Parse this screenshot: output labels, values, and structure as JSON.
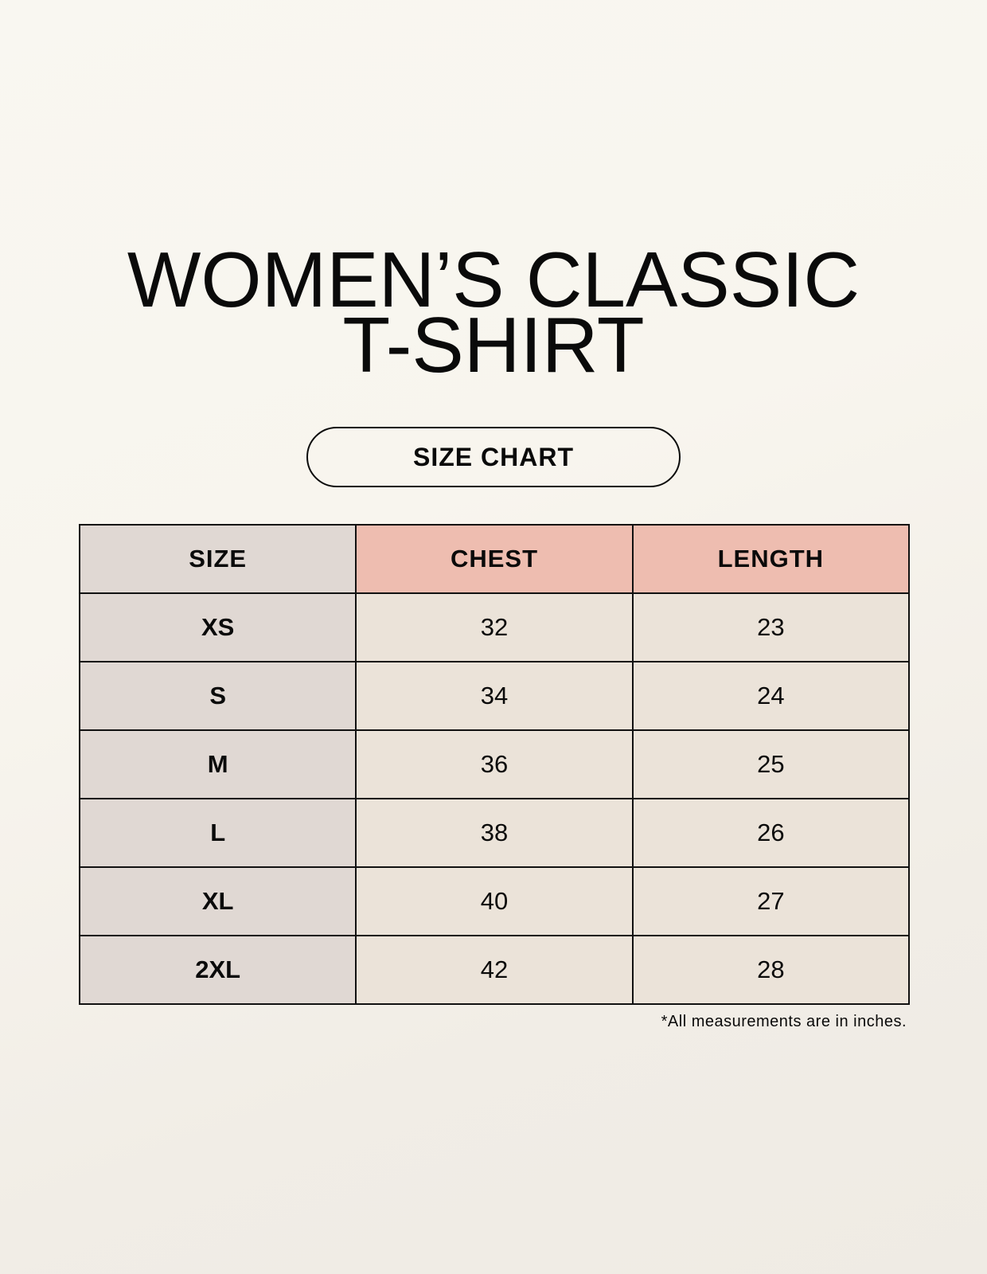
{
  "title_line1": "WOMEN’S CLASSIC",
  "title_line2": "T-SHIRT",
  "subtitle": "SIZE CHART",
  "table": {
    "headers": [
      "SIZE",
      "CHEST",
      "LENGTH"
    ],
    "rows": [
      [
        "XS",
        "32",
        "23"
      ],
      [
        "S",
        "34",
        "24"
      ],
      [
        "M",
        "36",
        "25"
      ],
      [
        "L",
        "38",
        "26"
      ],
      [
        "XL",
        "40",
        "27"
      ],
      [
        "2XL",
        "42",
        "28"
      ]
    ]
  },
  "footnote": "*All measurements are in inches.",
  "colors": {
    "header_accent": "#eebdb0",
    "size_column": "#e0d8d3",
    "value_cells": "#ebe3d9"
  }
}
